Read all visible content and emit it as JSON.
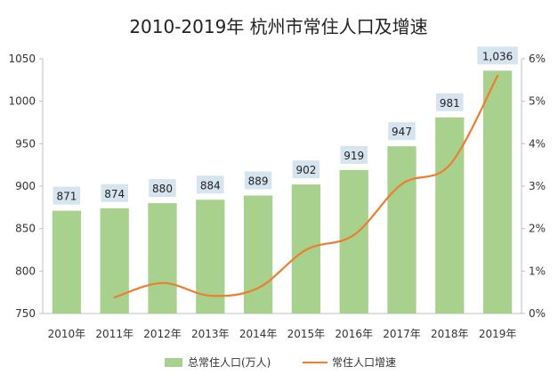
{
  "chart_data": {
    "type": "bar",
    "title": "2010-2019年 杭州市常住人口及增速",
    "categories": [
      "2010年",
      "2011年",
      "2012年",
      "2013年",
      "2014年",
      "2015年",
      "2016年",
      "2017年",
      "2018年",
      "2019年"
    ],
    "series": [
      {
        "name": "总常住人口(万人)",
        "kind": "bar",
        "axis": "left",
        "color": "#a9d18e",
        "values": [
          871,
          874,
          880,
          884,
          889,
          902,
          919,
          947,
          981,
          1036
        ],
        "data_labels": [
          "871",
          "874",
          "880",
          "884",
          "889",
          "902",
          "919",
          "947",
          "981",
          "1,036"
        ]
      },
      {
        "name": "常住人口增速",
        "kind": "line",
        "axis": "right",
        "color": "#ed7d31",
        "values": [
          null,
          0.38,
          0.72,
          0.42,
          0.6,
          1.5,
          1.85,
          3.05,
          3.5,
          5.6
        ]
      }
    ],
    "y_left": {
      "lim": [
        750,
        1050
      ],
      "ticks": [
        750,
        800,
        850,
        900,
        950,
        1000,
        1050
      ],
      "tick_labels": [
        "750",
        "800",
        "850",
        "900",
        "950",
        "1000",
        "1050"
      ]
    },
    "y_right": {
      "lim": [
        0,
        6
      ],
      "ticks": [
        0,
        1,
        2,
        3,
        4,
        5,
        6
      ],
      "tick_labels": [
        "0%",
        "1%",
        "2%",
        "3%",
        "4%",
        "5%",
        "6%"
      ]
    },
    "label_box_color": "#d6e4f0",
    "grid": false,
    "legend_position": "bottom"
  }
}
